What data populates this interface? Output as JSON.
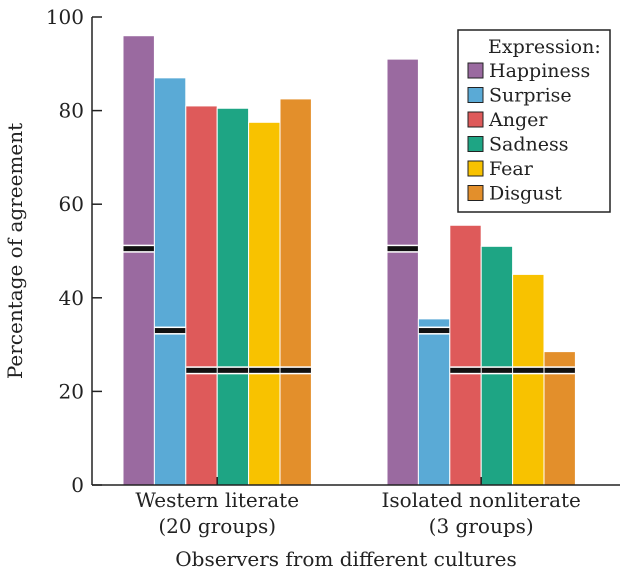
{
  "chart_data": {
    "type": "bar",
    "title": "",
    "xlabel": "Observers from different cultures",
    "ylabel": "Percentage of agreement",
    "ylim": [
      0,
      100
    ],
    "yticks": [
      0,
      20,
      40,
      60,
      80,
      100
    ],
    "grid": false,
    "legend": {
      "title": "Expression:",
      "placement": "top-right"
    },
    "categories": [
      {
        "line1": "Western literate",
        "line2": "(20 groups)"
      },
      {
        "line1": "Isolated nonliterate",
        "line2": "(3 groups)"
      }
    ],
    "series": [
      {
        "name": "Happiness",
        "color": "#9a6aa0",
        "values": [
          96,
          91
        ],
        "chance_level": [
          50.5,
          50.5
        ]
      },
      {
        "name": "Surprise",
        "color": "#5aaad6",
        "values": [
          87,
          35.5
        ],
        "chance_level": [
          33,
          33
        ]
      },
      {
        "name": "Anger",
        "color": "#de5a5a",
        "values": [
          81,
          55.5
        ],
        "chance_level": [
          24.5,
          24.5
        ]
      },
      {
        "name": "Sadness",
        "color": "#1ea584",
        "values": [
          80.5,
          51
        ],
        "chance_level": [
          24.5,
          24.5
        ]
      },
      {
        "name": "Fear",
        "color": "#f8c200",
        "values": [
          77.5,
          45
        ],
        "chance_level": [
          24.5,
          24.5
        ]
      },
      {
        "name": "Disgust",
        "color": "#e38f2b",
        "values": [
          82.5,
          28.5
        ],
        "chance_level": [
          24.5,
          24.5
        ]
      }
    ]
  }
}
